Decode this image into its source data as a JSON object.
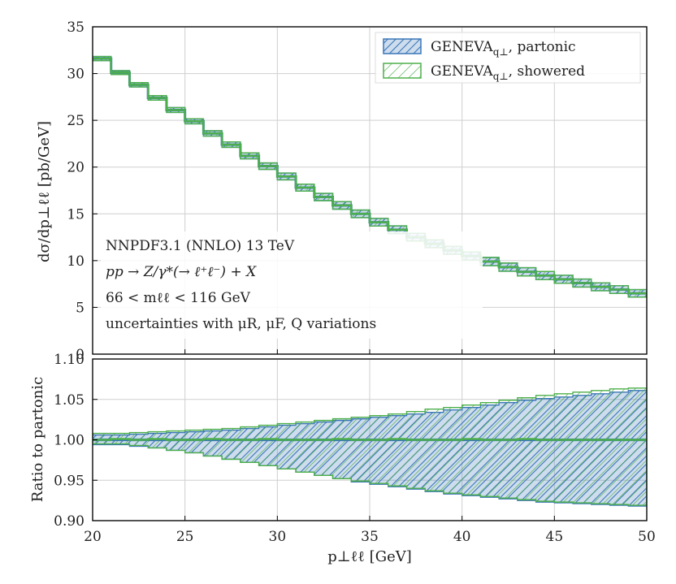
{
  "chart_data": [
    {
      "type": "line",
      "panel": "main",
      "xlabel": "p⊥ℓℓ [GeV]",
      "ylabel": "dσ/dp⊥ℓℓ [pb/GeV]",
      "xlim": [
        20,
        50
      ],
      "ylim": [
        0,
        35
      ],
      "x_ticks": [
        "20",
        "25",
        "30",
        "35",
        "40",
        "45",
        "50"
      ],
      "y_ticks": [
        "0",
        "5",
        "10",
        "15",
        "20",
        "25",
        "30",
        "35"
      ],
      "bin_edges": [
        20,
        21,
        22,
        23,
        24,
        25,
        26,
        27,
        28,
        29,
        30,
        31,
        32,
        33,
        34,
        35,
        36,
        37,
        38,
        39,
        40,
        41,
        42,
        43,
        44,
        45,
        46,
        47,
        48,
        49,
        50
      ],
      "series": [
        {
          "name": "GENEVA q⊥, partonic",
          "color": "#3a76b8",
          "values": [
            31.6,
            30.1,
            28.8,
            27.4,
            26.1,
            24.9,
            23.6,
            22.4,
            21.2,
            20.1,
            19.0,
            17.8,
            16.8,
            15.9,
            15.0,
            14.1,
            13.3,
            12.5,
            11.8,
            11.1,
            10.5,
            9.9,
            9.3,
            8.8,
            8.4,
            8.0,
            7.6,
            7.2,
            6.9,
            6.5
          ]
        },
        {
          "name": "GENEVA q⊥, showered",
          "color": "#4daf4a",
          "values": [
            31.6,
            30.1,
            28.8,
            27.4,
            26.1,
            24.9,
            23.6,
            22.4,
            21.2,
            20.1,
            19.0,
            17.8,
            16.8,
            15.9,
            15.0,
            14.1,
            13.3,
            12.5,
            11.8,
            11.1,
            10.5,
            9.9,
            9.3,
            8.8,
            8.4,
            8.0,
            7.6,
            7.2,
            6.9,
            6.5
          ]
        }
      ],
      "relative_band": [
        0.007,
        0.007,
        0.008,
        0.009,
        0.01,
        0.011,
        0.012,
        0.013,
        0.015,
        0.017,
        0.019,
        0.021,
        0.023,
        0.025,
        0.027,
        0.029,
        0.031,
        0.033,
        0.035,
        0.038,
        0.041,
        0.044,
        0.047,
        0.05,
        0.052,
        0.054,
        0.056,
        0.058,
        0.06,
        0.062
      ],
      "legend": [
        "GENEVA",
        "q⊥",
        ", partonic",
        ", showered"
      ],
      "annotations": [
        "NNPDF3.1 (NNLO) 13 TeV",
        "pp → Z/γ*(→ ℓ⁺ℓ⁻) + X",
        "66 < mℓℓ < 116 GeV",
        "uncertainties with μR, μF, Q variations"
      ]
    },
    {
      "type": "line",
      "panel": "ratio",
      "ylabel": "Ratio to partonic",
      "xlim": [
        20,
        50
      ],
      "ylim": [
        0.9,
        1.1
      ],
      "y_ticks": [
        "0.90",
        "0.95",
        "1.00",
        "1.05",
        "1.10"
      ],
      "series": [
        {
          "name": "partonic",
          "center": [
            1.0,
            1.0,
            1.0,
            1.0,
            1.0,
            1.0,
            1.0,
            1.0,
            1.0,
            1.0,
            1.0,
            1.0,
            1.0,
            1.0,
            1.0,
            1.0,
            1.0,
            1.0,
            1.0,
            1.0,
            1.0,
            1.0,
            1.0,
            1.0,
            1.0,
            1.0,
            1.0,
            1.0,
            1.0,
            1.0
          ],
          "up": [
            1.006,
            1.006,
            1.007,
            1.008,
            1.009,
            1.01,
            1.011,
            1.012,
            1.014,
            1.016,
            1.018,
            1.02,
            1.022,
            1.024,
            1.026,
            1.028,
            1.03,
            1.032,
            1.034,
            1.037,
            1.04,
            1.043,
            1.046,
            1.049,
            1.051,
            1.053,
            1.055,
            1.057,
            1.059,
            1.061
          ],
          "down": [
            0.994,
            0.994,
            0.992,
            0.99,
            0.987,
            0.984,
            0.98,
            0.976,
            0.972,
            0.968,
            0.964,
            0.96,
            0.956,
            0.952,
            0.948,
            0.945,
            0.942,
            0.939,
            0.936,
            0.933,
            0.931,
            0.929,
            0.927,
            0.925,
            0.923,
            0.922,
            0.921,
            0.92,
            0.919,
            0.918
          ]
        },
        {
          "name": "showered",
          "center": [
            1.0,
            1.001,
            1.0,
            1.001,
            1.0,
            1.0,
            1.001,
            1.0,
            1.0,
            1.001,
            1.0,
            1.0,
            1.0,
            1.001,
            1.0,
            1.0,
            1.001,
            1.0,
            1.0,
            1.0,
            1.001,
            1.0,
            1.0,
            1.001,
            1.0,
            1.0,
            1.0,
            1.0,
            1.0,
            1.0
          ],
          "up": [
            1.008,
            1.008,
            1.009,
            1.01,
            1.011,
            1.012,
            1.013,
            1.014,
            1.016,
            1.018,
            1.02,
            1.022,
            1.024,
            1.026,
            1.028,
            1.03,
            1.032,
            1.035,
            1.038,
            1.04,
            1.043,
            1.046,
            1.049,
            1.052,
            1.055,
            1.057,
            1.059,
            1.061,
            1.063,
            1.064
          ],
          "down": [
            0.995,
            0.995,
            0.993,
            0.99,
            0.987,
            0.984,
            0.98,
            0.976,
            0.972,
            0.968,
            0.964,
            0.96,
            0.956,
            0.952,
            0.949,
            0.946,
            0.943,
            0.94,
            0.937,
            0.934,
            0.932,
            0.93,
            0.928,
            0.926,
            0.924,
            0.923,
            0.922,
            0.921,
            0.92,
            0.919
          ]
        }
      ]
    }
  ]
}
